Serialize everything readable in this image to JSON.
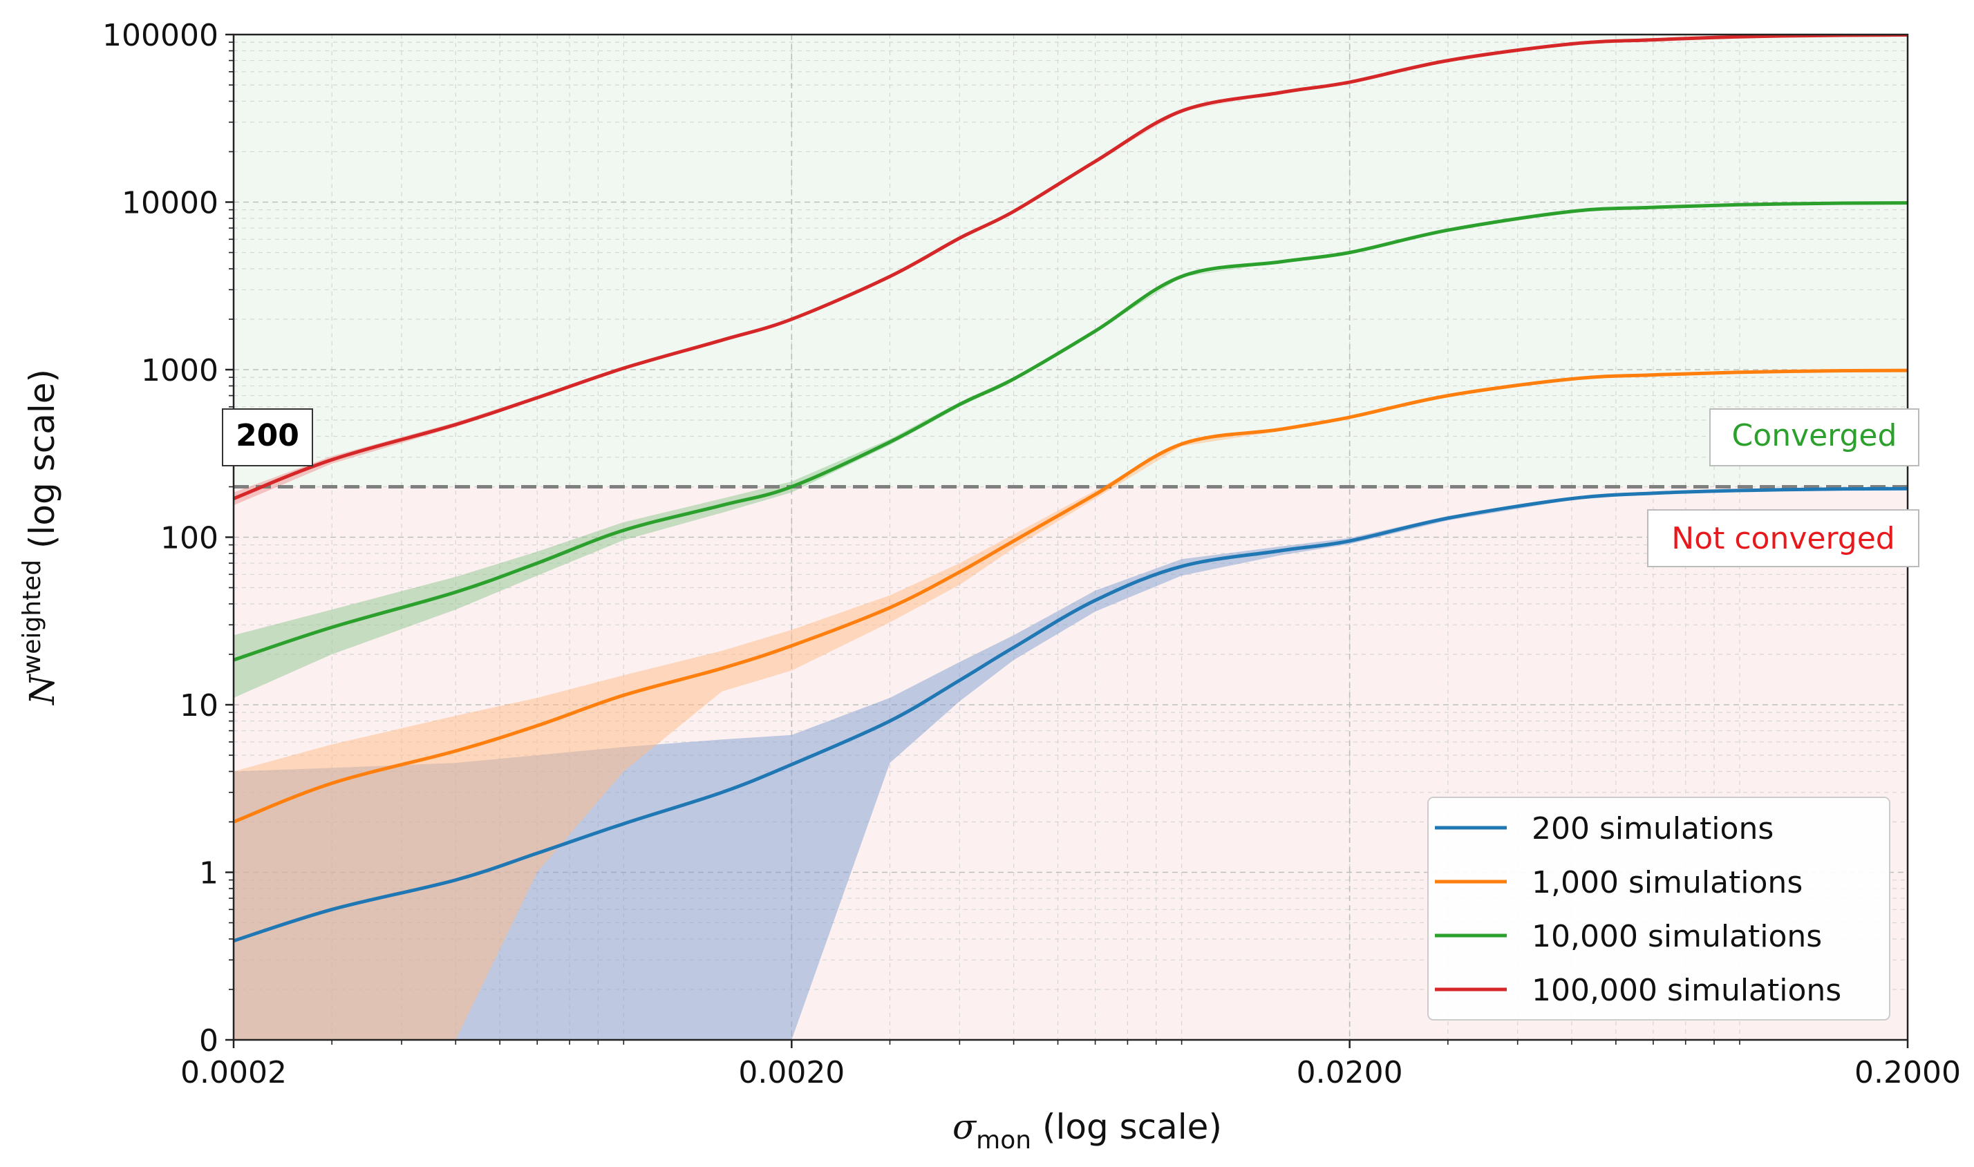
{
  "chart_data": {
    "type": "line",
    "xlabel": {
      "symbol": "σ",
      "subscript": "mon",
      "suffix": " (log scale)"
    },
    "ylabel": {
      "symbol": "N",
      "superscript": "weighted",
      "suffix": " (log scale)"
    },
    "x_scale": "log",
    "y_scale": "log",
    "xlim": [
      0.0002,
      0.2
    ],
    "y_ticks": [
      {
        "value": 0.1,
        "label": "0"
      },
      {
        "value": 1,
        "label": "1"
      },
      {
        "value": 10,
        "label": "10"
      },
      {
        "value": 100,
        "label": "100"
      },
      {
        "value": 1000,
        "label": "1000"
      },
      {
        "value": 10000,
        "label": "10000"
      },
      {
        "value": 100000,
        "label": "100000"
      }
    ],
    "x_ticks": [
      {
        "value": 0.0002,
        "label": "0.0002"
      },
      {
        "value": 0.002,
        "label": "0.0020"
      },
      {
        "value": 0.02,
        "label": "0.0200"
      },
      {
        "value": 0.2,
        "label": "0.2000"
      }
    ],
    "grid": true,
    "threshold": {
      "value": 200,
      "label": "200"
    },
    "regions": {
      "above": {
        "label": "Converged",
        "color": "#2ca02c",
        "fill": "#f1f8f1"
      },
      "below": {
        "label": "Not converged",
        "color": "#e8191c",
        "fill": "#fdf0f0"
      }
    },
    "legend_position": "bottom-right",
    "x": [
      0.0002,
      0.0003,
      0.0005,
      0.0007,
      0.001,
      0.0015,
      0.002,
      0.003,
      0.004,
      0.005,
      0.007,
      0.01,
      0.015,
      0.02,
      0.03,
      0.05,
      0.07,
      0.1,
      0.15,
      0.2
    ],
    "series": [
      {
        "name": "200 simulations",
        "color": "#1f77b4",
        "band_color": "#7f9fcf",
        "values": [
          0.39,
          0.6,
          0.9,
          1.3,
          1.95,
          3.0,
          4.4,
          8.0,
          14,
          22,
          42,
          67,
          83,
          95,
          130,
          170,
          183,
          190,
          194,
          195
        ],
        "lower": [
          0.1,
          0.1,
          0.1,
          0.1,
          0.1,
          0.1,
          0.1,
          4.5,
          10.5,
          18.5,
          36,
          59,
          78,
          91,
          126,
          167,
          181,
          188,
          193,
          194
        ],
        "upper": [
          4.0,
          4.2,
          4.5,
          5.0,
          5.6,
          6.2,
          6.6,
          11,
          18,
          26,
          48,
          74,
          88,
          99,
          134,
          173,
          185,
          192,
          195,
          196
        ]
      },
      {
        "name": "1,000 simulations",
        "color": "#ff7f0e",
        "band_color": "#ffbb88",
        "values": [
          2.0,
          3.4,
          5.3,
          7.5,
          11.4,
          16.5,
          22.5,
          38,
          62,
          95,
          180,
          360,
          440,
          520,
          700,
          880,
          930,
          965,
          985,
          990
        ],
        "lower": [
          0.1,
          0.1,
          0.1,
          1.0,
          4.0,
          12.0,
          16,
          31,
          52,
          86,
          170,
          350,
          430,
          510,
          690,
          875,
          925,
          962,
          983,
          988
        ],
        "upper": [
          4.0,
          5.8,
          8.6,
          11,
          15,
          21,
          28,
          45,
          70,
          104,
          190,
          370,
          450,
          530,
          710,
          885,
          935,
          968,
          987,
          992
        ]
      },
      {
        "name": "10,000 simulations",
        "color": "#2ca02c",
        "band_color": "#8fc88f",
        "values": [
          18.5,
          29,
          47,
          70,
          110,
          155,
          200,
          370,
          620,
          880,
          1700,
          3600,
          4400,
          5000,
          6800,
          8800,
          9300,
          9650,
          9850,
          9900
        ],
        "lower": [
          11,
          20,
          37,
          59,
          96,
          140,
          185,
          355,
          600,
          860,
          1680,
          3580,
          4380,
          4980,
          6780,
          8780,
          9280,
          9640,
          9840,
          9890
        ],
        "upper": [
          26,
          37,
          58,
          82,
          123,
          170,
          215,
          385,
          640,
          900,
          1720,
          3620,
          4420,
          5020,
          6820,
          8820,
          9320,
          9660,
          9860,
          9910
        ]
      },
      {
        "name": "100,000 simulations",
        "color": "#d62728",
        "band_color": "#ee9090",
        "values": [
          170,
          290,
          470,
          680,
          1020,
          1500,
          2000,
          3600,
          6100,
          8800,
          17500,
          35000,
          45000,
          52000,
          70000,
          88000,
          93000,
          97000,
          99000,
          99500
        ],
        "lower": [
          155,
          275,
          455,
          665,
          1000,
          1480,
          1980,
          3580,
          6080,
          8780,
          17400,
          34900,
          44900,
          51900,
          69900,
          87900,
          92900,
          96900,
          98900,
          99400
        ],
        "upper": [
          185,
          305,
          485,
          695,
          1040,
          1520,
          2020,
          3620,
          6120,
          8820,
          17600,
          35100,
          45100,
          52100,
          70100,
          88100,
          93100,
          97100,
          99100,
          99600
        ]
      }
    ]
  }
}
